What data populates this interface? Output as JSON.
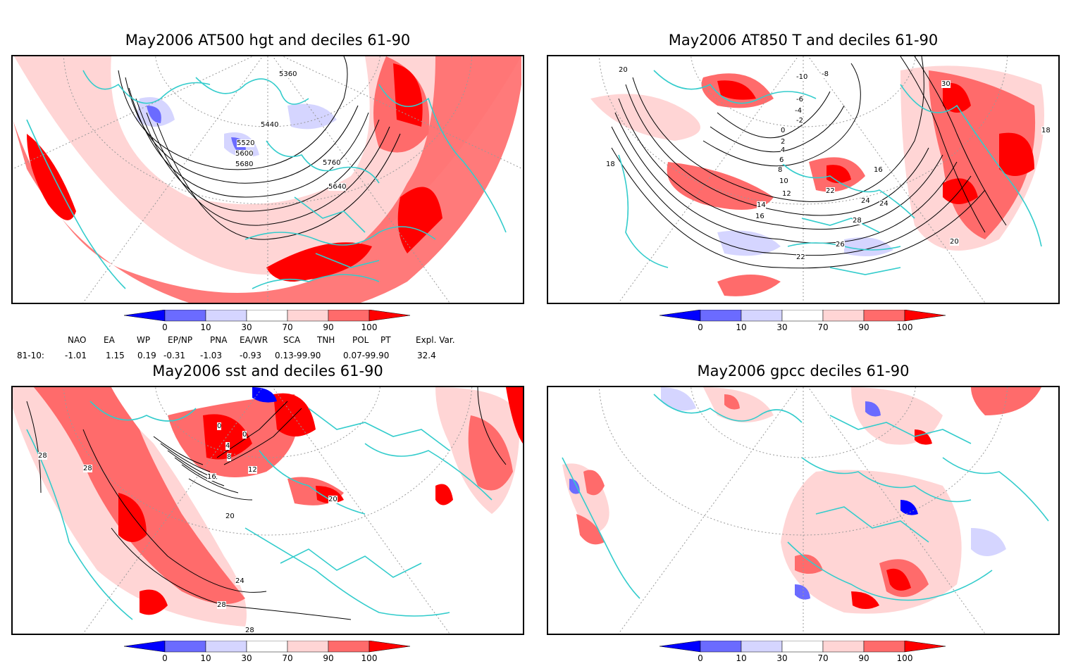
{
  "panels": [
    {
      "title": "May2006 AT500 hgt and deciles 61-90",
      "contour_labels": [
        "5360",
        "5440",
        "5520",
        "5600",
        "5680",
        "5760",
        "5640"
      ]
    },
    {
      "title": "May2006 AT850 T and deciles 61-90",
      "contour_labels": [
        "-8",
        "-10",
        "-6",
        "-4",
        "-2",
        "0",
        "2",
        "4",
        "6",
        "8",
        "10",
        "12",
        "14",
        "16",
        "18",
        "20",
        "22",
        "24",
        "26",
        "28",
        "30",
        "16",
        "18",
        "20",
        "22",
        "24"
      ]
    },
    {
      "title": "May2006 sst and deciles 61-90",
      "contour_labels": [
        "28",
        "28",
        "0",
        "0",
        "4",
        "8",
        "12",
        "16",
        "20",
        "24",
        "28",
        "28",
        "20"
      ]
    },
    {
      "title": "May2006 gpcc deciles 61-90",
      "contour_labels": []
    }
  ],
  "colorbar": {
    "labels": [
      "0",
      "10",
      "30",
      "70",
      "90",
      "100"
    ],
    "colors": [
      "#0000ff",
      "#6b6bff",
      "#d5d5ff",
      "#ffffff",
      "#ffd5d5",
      "#ff6b6b",
      "#ff0000"
    ]
  },
  "indices": {
    "headers": [
      "NAO",
      "EA",
      "WP",
      "EP/NP",
      "PNA",
      "EA/WR",
      "SCA",
      "TNH",
      "POL",
      "PT",
      "Expl. Var."
    ],
    "row_label": "81-10:",
    "values": [
      "-1.01",
      "1.15",
      "0.19",
      "-0.31",
      "-1.03",
      "-0.93",
      "0.13-99.90",
      "0.07-99.90",
      "32.4"
    ]
  },
  "colors": {
    "coast": "#33cccc",
    "grid": "#999999",
    "contour": "#000000"
  }
}
